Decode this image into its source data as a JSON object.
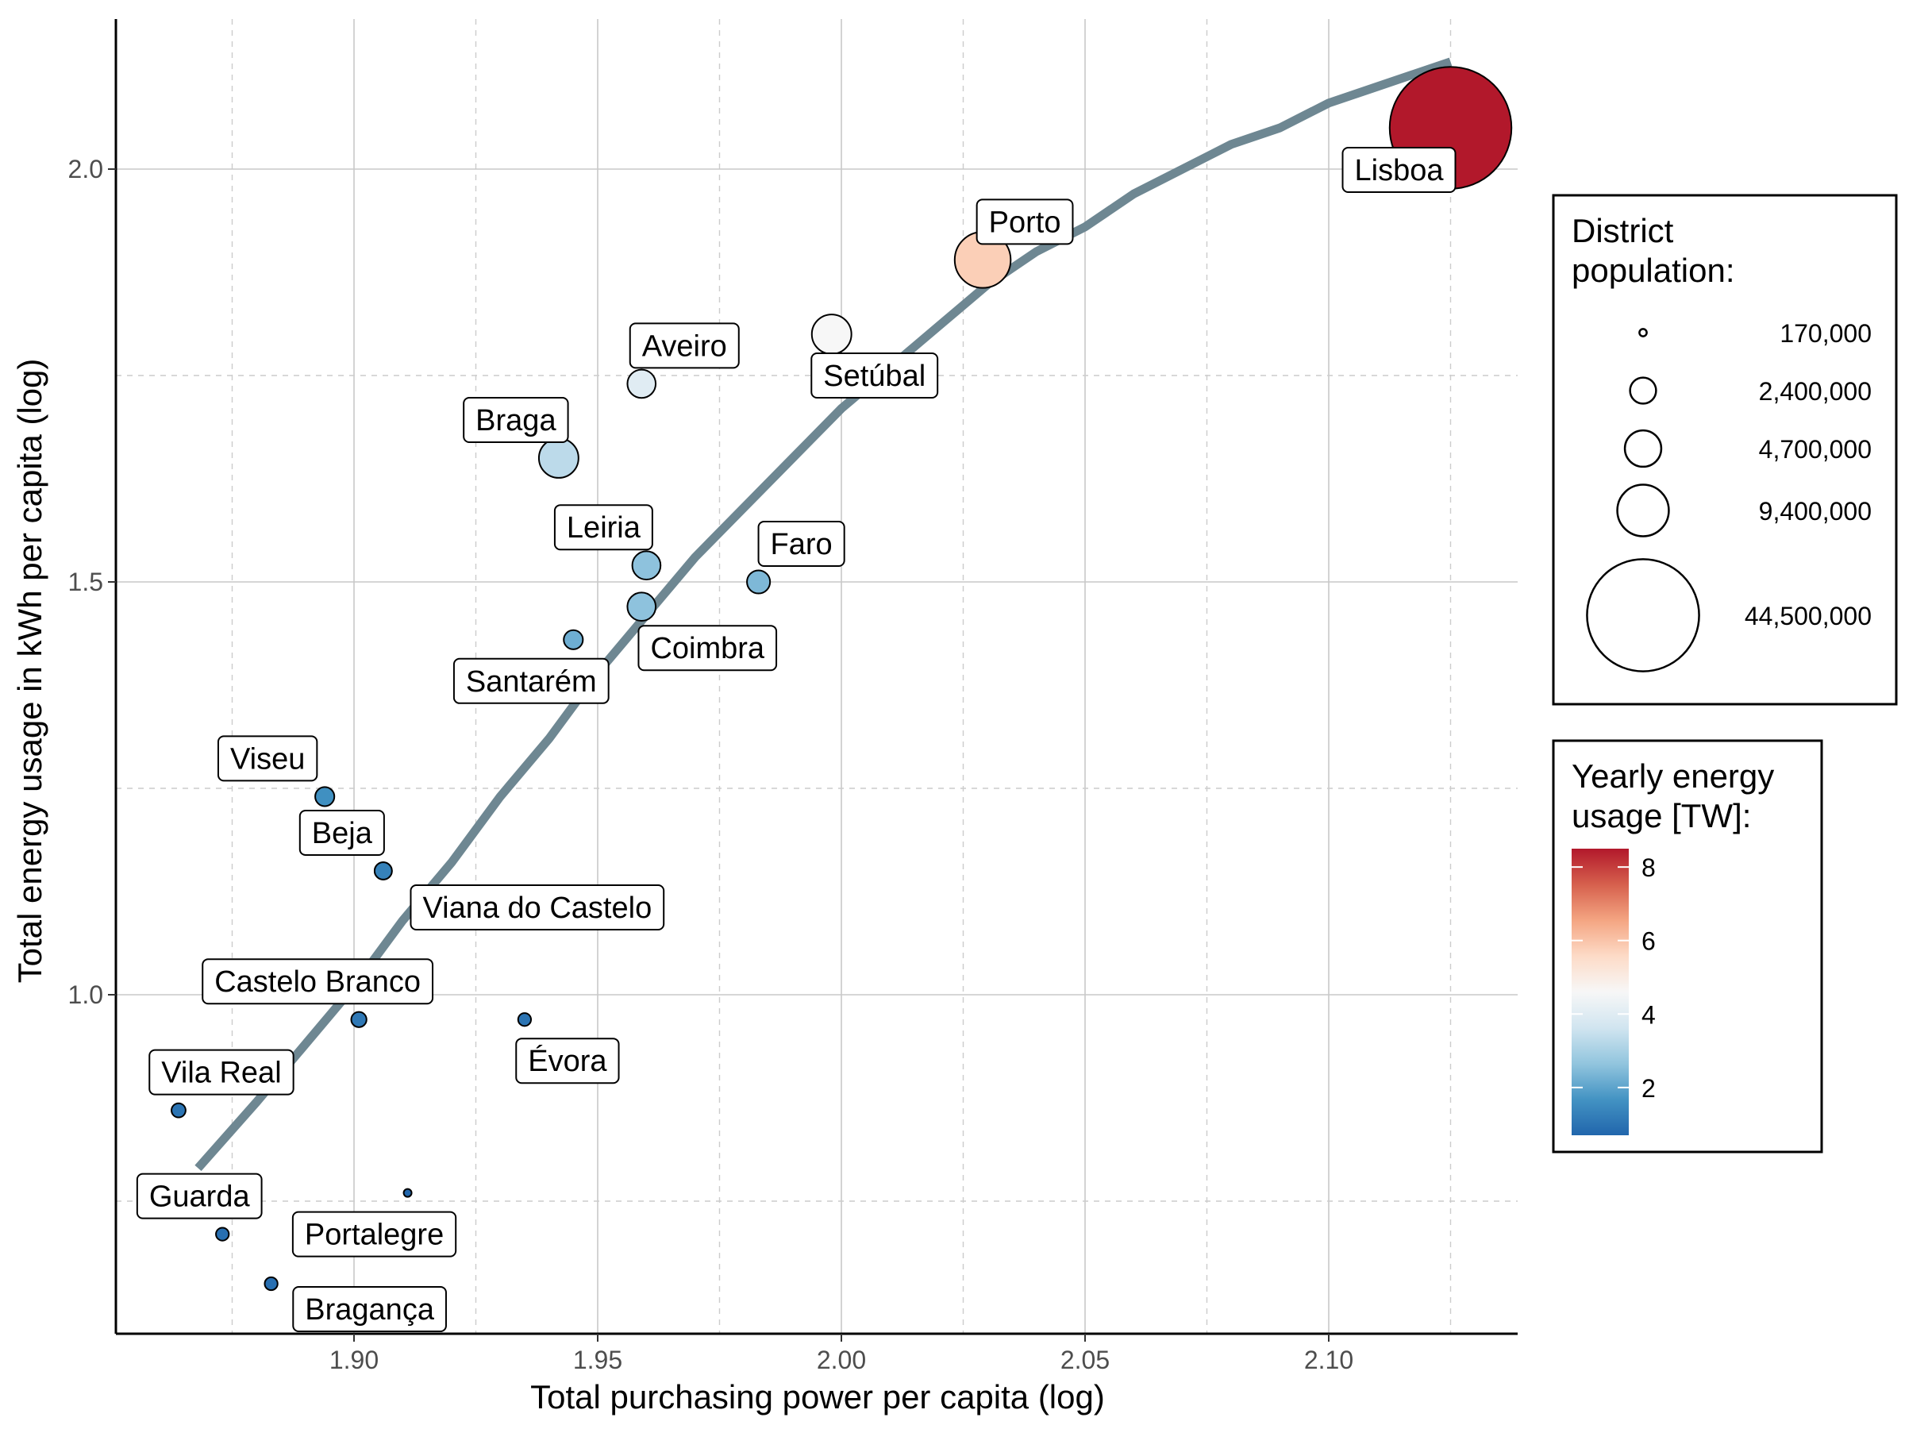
{
  "chart_data": {
    "type": "scatter",
    "title": "",
    "xlabel": "Total purchasing power per capita (log)",
    "ylabel": "Total energy usage in kWh per capita (log)",
    "xlim": [
      1.85,
      2.137
    ],
    "ylim": [
      0.61,
      2.185
    ],
    "x_ticks": [
      1.9,
      1.95,
      2.0,
      2.05,
      2.1
    ],
    "x_tick_labels": [
      "1.90",
      "1.95",
      "2.00",
      "2.05",
      "2.10"
    ],
    "y_ticks": [
      1.0,
      1.5,
      2.0
    ],
    "y_tick_labels": [
      "1.0",
      "1.5",
      "2.0"
    ],
    "grid": true,
    "points": [
      {
        "label": "Lisboa",
        "x": 2.125,
        "y": 2.05,
        "population": 44500000,
        "energy": 8.5
      },
      {
        "label": "Porto",
        "x": 2.029,
        "y": 1.89,
        "population": 9400000,
        "energy": 5.8
      },
      {
        "label": "Setúbal",
        "x": 1.998,
        "y": 1.8,
        "population": 4700000,
        "energy": 4.6
      },
      {
        "label": "Aveiro",
        "x": 1.959,
        "y": 1.74,
        "population": 2400000,
        "energy": 4.0
      },
      {
        "label": "Braga",
        "x": 1.942,
        "y": 1.65,
        "population": 4700000,
        "energy": 3.3
      },
      {
        "label": "Leiria",
        "x": 1.96,
        "y": 1.52,
        "population": 2400000,
        "energy": 2.6
      },
      {
        "label": "Faro",
        "x": 1.983,
        "y": 1.5,
        "population": 1600000,
        "energy": 2.4
      },
      {
        "label": "Coimbra",
        "x": 1.959,
        "y": 1.47,
        "population": 2400000,
        "energy": 2.6
      },
      {
        "label": "Santarém",
        "x": 1.945,
        "y": 1.43,
        "population": 1100000,
        "energy": 2.2
      },
      {
        "label": "Viseu",
        "x": 1.894,
        "y": 1.24,
        "population": 1100000,
        "energy": 1.6
      },
      {
        "label": "Beja",
        "x": 1.906,
        "y": 1.15,
        "population": 900000,
        "energy": 1.3
      },
      {
        "label": "Viana do Castelo",
        "x": 1.906,
        "y": 1.15,
        "population": 900000,
        "energy": 1.3
      },
      {
        "label": "Castelo Branco",
        "x": 1.901,
        "y": 0.97,
        "population": 700000,
        "energy": 1.1
      },
      {
        "label": "Évora",
        "x": 1.935,
        "y": 0.97,
        "population": 500000,
        "energy": 1.0
      },
      {
        "label": "Vila Real",
        "x": 1.864,
        "y": 0.86,
        "population": 600000,
        "energy": 1.0
      },
      {
        "label": "Portalegre",
        "x": 1.911,
        "y": 0.76,
        "population": 170000,
        "energy": 0.7
      },
      {
        "label": "Guarda",
        "x": 1.873,
        "y": 0.71,
        "population": 500000,
        "energy": 0.9
      },
      {
        "label": "Bragança",
        "x": 1.883,
        "y": 0.65,
        "population": 500000,
        "energy": 0.9
      }
    ],
    "fit_curve": {
      "x": [
        1.868,
        1.88,
        1.89,
        1.9,
        1.91,
        1.92,
        1.93,
        1.94,
        1.95,
        1.96,
        1.97,
        1.98,
        1.99,
        2.0,
        2.01,
        2.02,
        2.03,
        2.04,
        2.05,
        2.06,
        2.07,
        2.08,
        2.09,
        2.1,
        2.11,
        2.125
      ],
      "y": [
        0.79,
        0.87,
        0.94,
        1.01,
        1.09,
        1.16,
        1.24,
        1.31,
        1.39,
        1.46,
        1.53,
        1.59,
        1.65,
        1.71,
        1.76,
        1.81,
        1.86,
        1.9,
        1.93,
        1.97,
        2.0,
        2.03,
        2.05,
        2.08,
        2.1,
        2.13
      ],
      "color": "#6e8792"
    },
    "size_legend": {
      "title": "District\npopulation:",
      "entries": [
        {
          "label": "170,000",
          "value": 170000
        },
        {
          "label": "2,400,000",
          "value": 2400000
        },
        {
          "label": "4,700,000",
          "value": 4700000
        },
        {
          "label": "9,400,000",
          "value": 9400000
        },
        {
          "label": "44,500,000",
          "value": 44500000
        }
      ]
    },
    "color_legend": {
      "title": "Yearly energy\nusage [TW]:",
      "ticks": [
        2,
        4,
        6,
        8
      ],
      "tick_labels": [
        "2",
        "4",
        "6",
        "8"
      ],
      "range": [
        0.7,
        8.5
      ],
      "palette": [
        "#2166ac",
        "#4393c3",
        "#92c5de",
        "#d1e5f0",
        "#f7f7f7",
        "#fddbc7",
        "#f4a582",
        "#d6604d",
        "#b2182b"
      ]
    }
  }
}
